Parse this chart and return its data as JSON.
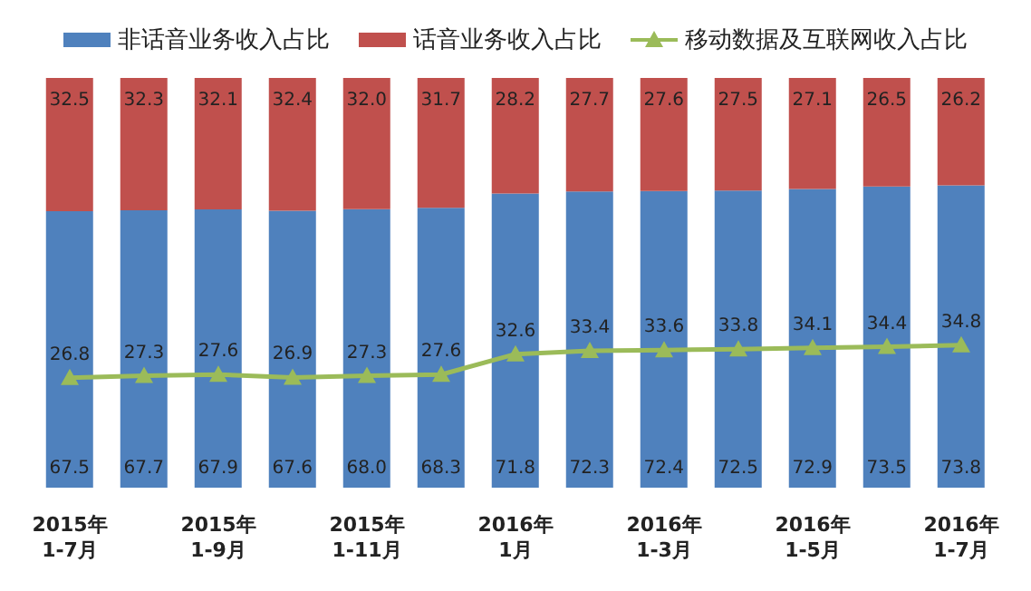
{
  "chart_data": {
    "type": "bar",
    "stacked": true,
    "categories": [
      "2015年\n1-7月",
      null,
      "2015年\n1-9月",
      null,
      "2015年\n1-11月",
      null,
      "2016年\n1月",
      null,
      "2016年\n1-3月",
      null,
      "2016年\n1-5月",
      null,
      "2016年\n1-7月"
    ],
    "series": [
      {
        "name": "非话音业务收入占比",
        "color": "#4f81bd",
        "values": [
          67.5,
          67.7,
          67.9,
          67.6,
          68.0,
          68.3,
          71.8,
          72.3,
          72.4,
          72.5,
          72.9,
          73.5,
          73.8
        ],
        "value_labels": [
          "67.5",
          "67.7",
          "67.9",
          "67.6",
          "68.0",
          "68.3",
          "71.8",
          "72.3",
          "72.4",
          "72.5",
          "72.9",
          "73.5",
          "73.8"
        ]
      },
      {
        "name": "话音业务收入占比",
        "color": "#c0504d",
        "values": [
          32.5,
          32.3,
          32.1,
          32.4,
          32.0,
          31.7,
          28.2,
          27.7,
          27.6,
          27.5,
          27.1,
          26.5,
          26.2
        ],
        "value_labels": [
          "32.5",
          "32.3",
          "32.1",
          "32.4",
          "32.0",
          "31.7",
          "28.2",
          "27.7",
          "27.6",
          "27.5",
          "27.1",
          "26.5",
          "26.2"
        ]
      },
      {
        "name": "移动数据及互联网收入占比",
        "type": "line",
        "color": "#9bbb59",
        "values": [
          26.8,
          27.3,
          27.6,
          26.9,
          27.3,
          27.6,
          32.6,
          33.4,
          33.6,
          33.8,
          34.1,
          34.4,
          34.8
        ],
        "value_labels": [
          "26.8",
          "27.3",
          "27.6",
          "26.9",
          "27.3",
          "27.6",
          "32.6",
          "33.4",
          "33.6",
          "33.8",
          "34.1",
          "34.4",
          "34.8"
        ]
      }
    ],
    "ylim": [
      0,
      100
    ],
    "legend": "top",
    "marker": "triangle",
    "tick_labels": "x"
  }
}
